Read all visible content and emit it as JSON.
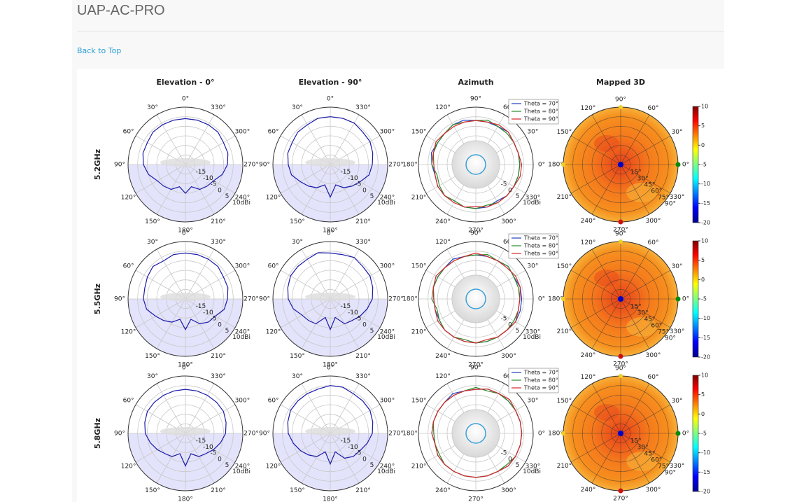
{
  "header": {
    "title": "UAP-AC-PRO",
    "back_link": "Back to Top"
  },
  "figure": {
    "column_titles": [
      "Elevation - 0°",
      "Elevation - 90°",
      "Azimuth",
      "Mapped 3D"
    ],
    "angle_labels": [
      "0°",
      "30°",
      "60°",
      "90°",
      "120°",
      "150°",
      "180°",
      "210°",
      "240°",
      "270°",
      "300°",
      "330°"
    ],
    "elevation_radial": {
      "lim": [
        -20,
        10
      ],
      "ticks": [
        -15,
        -10,
        -5,
        0,
        5,
        {
          "value": 10,
          "label": "10dBi"
        }
      ]
    },
    "azimuth_radial": {
      "lim": [
        -20,
        10
      ],
      "ticks": [
        -5,
        0,
        5,
        {
          "value": 10,
          "label": "10dBi"
        }
      ]
    },
    "theta_labels": [
      "15°",
      "30°",
      "45°",
      "60°",
      "75°",
      "90°"
    ],
    "colorbar": {
      "lim": [
        -20,
        10
      ],
      "ticks": [
        10,
        5,
        0,
        -5,
        -10,
        -15,
        -20
      ]
    },
    "angles": [
      0,
      15,
      30,
      45,
      60,
      75,
      90,
      105,
      120,
      135,
      150,
      165,
      180,
      195,
      210,
      225,
      240,
      255,
      270,
      285,
      300,
      315,
      330,
      345
    ],
    "elevation_color": "#1a1aa8",
    "series": [
      {
        "name": "Theta = 70°",
        "color": "#1f3fbf"
      },
      {
        "name": "Theta = 80°",
        "color": "#2a8a2a"
      },
      {
        "name": "Theta = 90°",
        "color": "#d62728"
      }
    ],
    "rows": [
      {
        "label": "5.2GHz",
        "elevation_0": [
          4,
          4,
          4,
          4,
          3,
          3,
          2,
          0,
          -3,
          -4,
          -5,
          -8,
          -5,
          -8,
          -5,
          -4,
          -3,
          0,
          2,
          3,
          3,
          4,
          4,
          4
        ],
        "elevation_90": [
          5,
          5,
          4,
          4,
          3,
          3,
          2,
          1,
          -2,
          -4,
          -6,
          -9,
          -3,
          -9,
          -6,
          -4,
          -2,
          1,
          2,
          3,
          4,
          4,
          5,
          5
        ],
        "azimuth": [
          [
            3,
            3,
            3,
            4,
            3,
            3,
            3,
            4,
            4,
            3,
            3,
            4,
            3,
            2,
            3,
            3,
            2,
            3,
            3,
            3,
            2,
            3,
            3,
            3
          ],
          [
            3,
            3,
            3,
            3,
            3,
            4,
            3,
            3,
            4,
            3,
            3,
            3,
            3,
            1,
            2,
            3,
            2,
            3,
            3,
            2,
            3,
            3,
            3,
            3
          ],
          [
            4,
            3,
            3,
            4,
            4,
            3,
            3,
            3,
            3,
            3,
            4,
            3,
            2,
            2,
            3,
            3,
            3,
            3,
            2,
            3,
            3,
            3,
            3,
            4
          ]
        ]
      },
      {
        "label": "5.5GHz",
        "elevation_0": [
          4,
          4,
          3,
          4,
          3,
          2,
          2,
          1,
          -2,
          -4,
          -6,
          -9,
          -4,
          -9,
          -5,
          -3,
          -2,
          1,
          2,
          3,
          3,
          4,
          4,
          4
        ],
        "elevation_90": [
          4,
          5,
          4,
          4,
          4,
          3,
          2,
          0,
          -3,
          -4,
          -5,
          -10,
          -4,
          -10,
          -5,
          -4,
          -2,
          0,
          2,
          3,
          4,
          4,
          5,
          4
        ],
        "azimuth": [
          [
            4,
            4,
            3,
            4,
            3,
            3,
            3,
            3,
            4,
            3,
            3,
            3,
            2,
            2,
            2,
            3,
            3,
            3,
            3,
            3,
            3,
            3,
            4,
            4
          ],
          [
            3,
            3,
            3,
            4,
            3,
            4,
            3,
            3,
            3,
            3,
            3,
            3,
            3,
            1,
            2,
            3,
            3,
            2,
            3,
            3,
            3,
            3,
            3,
            3
          ],
          [
            3,
            4,
            4,
            3,
            3,
            3,
            4,
            3,
            3,
            3,
            4,
            3,
            2,
            2,
            3,
            3,
            3,
            3,
            3,
            2,
            3,
            3,
            4,
            3
          ]
        ]
      },
      {
        "label": "5.8GHz",
        "elevation_0": [
          3,
          3,
          3,
          3,
          3,
          2,
          1,
          -1,
          -3,
          -5,
          -6,
          -9,
          -3,
          -9,
          -6,
          -5,
          -3,
          -1,
          1,
          2,
          3,
          3,
          3,
          3
        ],
        "elevation_90": [
          5,
          4,
          4,
          4,
          4,
          3,
          2,
          0,
          -2,
          -4,
          -6,
          -10,
          -4,
          -10,
          -5,
          -3,
          -2,
          0,
          2,
          3,
          4,
          4,
          4,
          5
        ],
        "azimuth": [
          [
            4,
            4,
            4,
            4,
            4,
            4,
            3,
            3,
            4,
            3,
            3,
            3,
            3,
            2,
            3,
            3,
            3,
            3,
            3,
            3,
            3,
            4,
            4,
            4
          ],
          [
            4,
            4,
            4,
            4,
            4,
            3,
            4,
            3,
            3,
            3,
            3,
            3,
            2,
            2,
            2,
            3,
            3,
            3,
            3,
            3,
            3,
            3,
            4,
            4
          ],
          [
            4,
            4,
            4,
            5,
            4,
            4,
            3,
            3,
            3,
            3,
            3,
            3,
            3,
            2,
            3,
            3,
            3,
            3,
            3,
            3,
            3,
            4,
            4,
            4
          ]
        ]
      }
    ]
  }
}
